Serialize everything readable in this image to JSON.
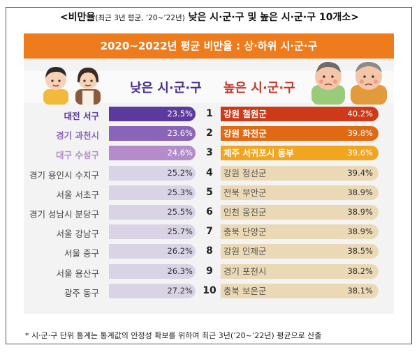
{
  "header": {
    "title_prefix": "<비만율",
    "title_sub": "(최근 3년 평균, ’20~’22년)",
    "title_main": " 낮은 시·군·구 및 높은 시·군·구 10개소>"
  },
  "colors": {
    "banner": "#ee7b1c",
    "low_rank1": "#5b3a9e",
    "low_rank2": "#8a64b6",
    "low_rank3": "#b38cc9",
    "low_rest": "#dad3e6",
    "high_rank1": "#cc3a1a",
    "high_rank2": "#e06a14",
    "high_rank3": "#f2a51f",
    "high_rest": "#ead9b4"
  },
  "chart_data": {
    "type": "bar",
    "title": "2020~2022년 평균 비만율 : 상·하위 시·군·구",
    "low_label": "낮은 시·군·구",
    "high_label": "높은 시·군·구",
    "ranks": [
      "1",
      "2",
      "3",
      "4",
      "5",
      "6",
      "7",
      "8",
      "9",
      "10"
    ],
    "low": [
      {
        "name": "대전 서구",
        "label": "23.5%",
        "value": 23.5
      },
      {
        "name": "경기 과천시",
        "label": "23.6%",
        "value": 23.6
      },
      {
        "name": "대구 수성구",
        "label": "24.6%",
        "value": 24.6
      },
      {
        "name": "경기 용인시 수지구",
        "label": "25.2%",
        "value": 25.2
      },
      {
        "name": "서울 서초구",
        "label": "25.3%",
        "value": 25.3
      },
      {
        "name": "경기 성남시 분당구",
        "label": "25.5%",
        "value": 25.5
      },
      {
        "name": "서울 강남구",
        "label": "25.7%",
        "value": 25.7
      },
      {
        "name": "서울 중구",
        "label": "26.2%",
        "value": 26.2
      },
      {
        "name": "서울 용산구",
        "label": "26.3%",
        "value": 26.3
      },
      {
        "name": "광주 동구",
        "label": "27.2%",
        "value": 27.2
      }
    ],
    "high": [
      {
        "name": "강원 철원군",
        "label": "40.2%",
        "value": 40.2
      },
      {
        "name": "강원 화천군",
        "label": "39.8%",
        "value": 39.8
      },
      {
        "name": "제주 서귀포시 동부",
        "label": "39.6%",
        "value": 39.6
      },
      {
        "name": "강원 정선군",
        "label": "39.4%",
        "value": 39.4
      },
      {
        "name": "전북 부안군",
        "label": "38.9%",
        "value": 38.9
      },
      {
        "name": "인천 옹진군",
        "label": "38.9%",
        "value": 38.9
      },
      {
        "name": "충북 단양군",
        "label": "38.9%",
        "value": 38.9
      },
      {
        "name": "강원 인제군",
        "label": "38.5%",
        "value": 38.5
      },
      {
        "name": "경기 포천시",
        "label": "38.2%",
        "value": 38.2
      },
      {
        "name": "충북 보은군",
        "label": "38.1%",
        "value": 38.1
      }
    ]
  },
  "footnote": "* 시·군·구 단위 통계는 통계값의 안정성 확보를 위하여 최근 3년(’20~’22년) 평균으로 산출"
}
